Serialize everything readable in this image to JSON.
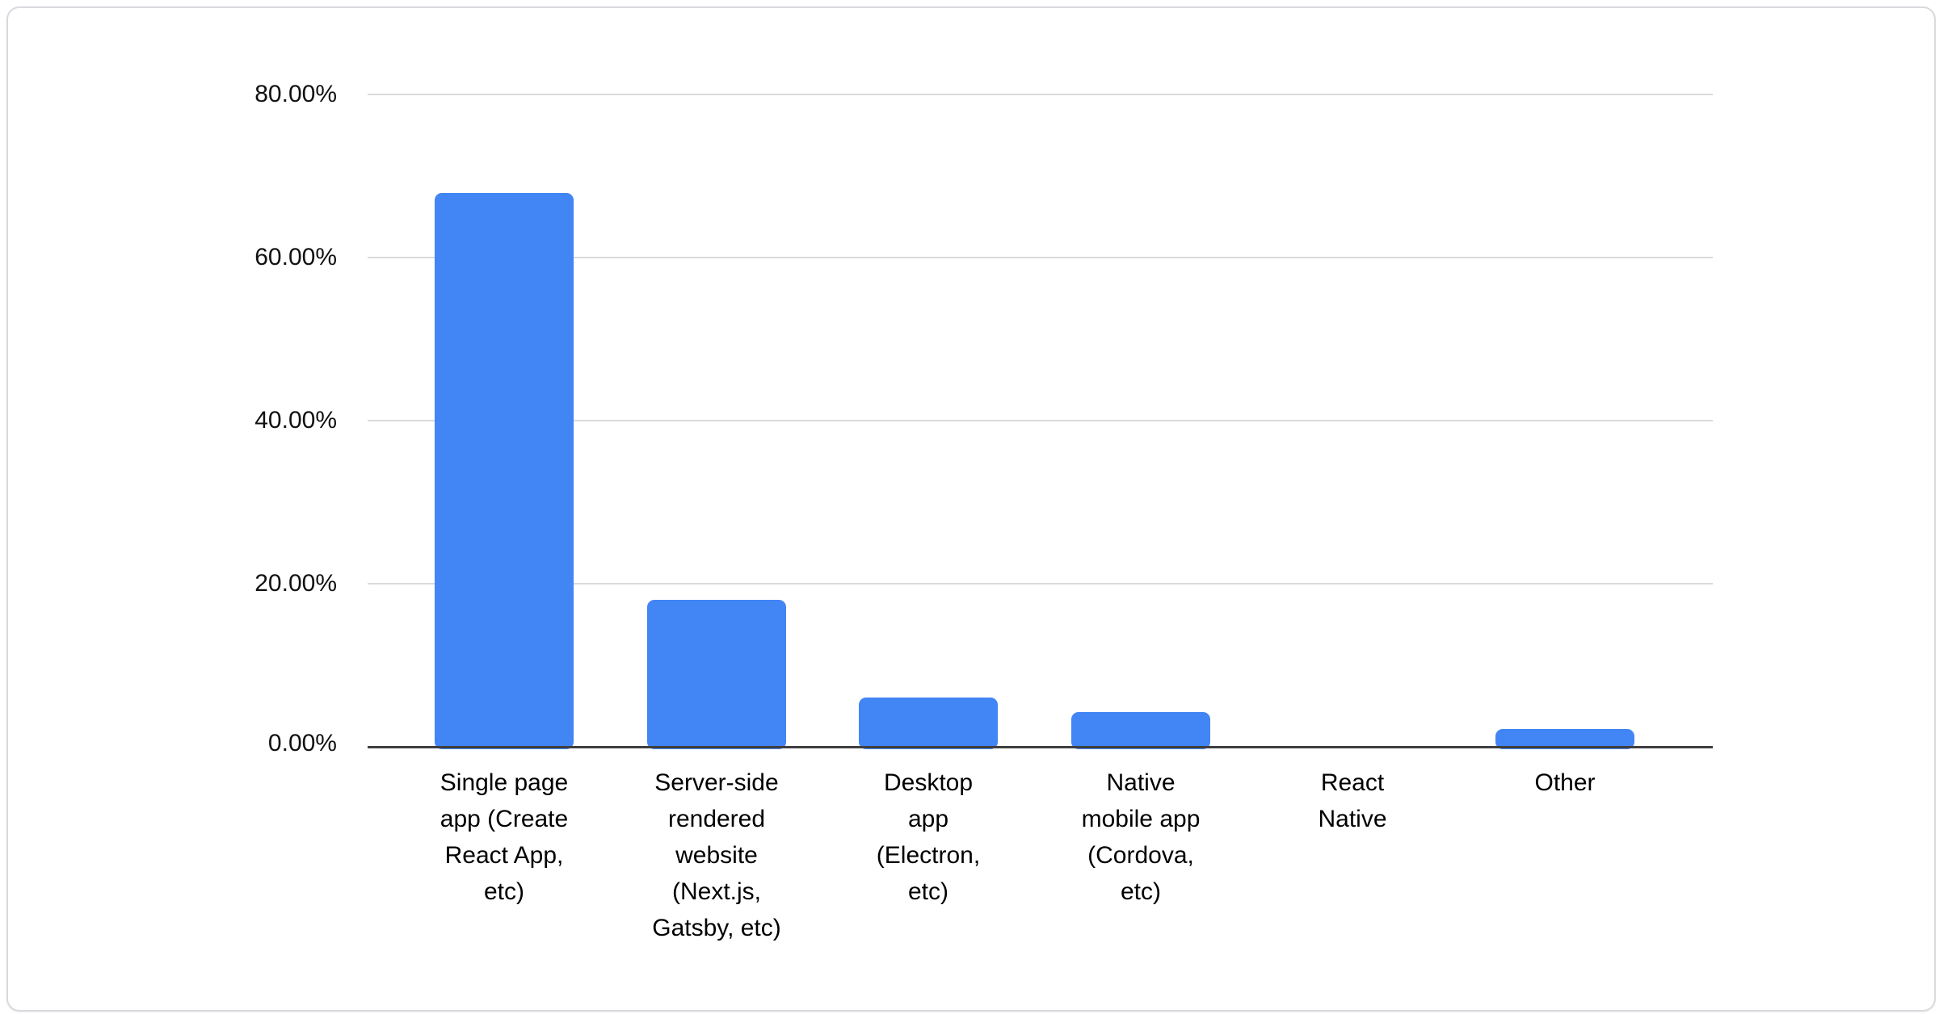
{
  "card": {
    "background": "#ffffff",
    "border_color": "#d8dadf"
  },
  "chart_data": {
    "type": "bar",
    "title": "",
    "xlabel": "",
    "ylabel": "",
    "legend": "none",
    "grid": true,
    "categories": [
      "Single page app (Create React App, etc)",
      "Server-side rendered website (Next.js, Gatsby, etc)",
      "Desktop app (Electron, etc)",
      "Native mobile app (Cordova, etc)",
      "React Native",
      "Other"
    ],
    "category_labels_wrapped": [
      "Single page\napp (Create\nReact App,\netc)",
      "Server-side\nrendered\nwebsite\n(Next.js,\nGatsby, etc)",
      "Desktop\napp\n(Electron,\netc)",
      "Native\nmobile app\n(Cordova,\netc)",
      "React\nNative",
      "Other"
    ],
    "values": [
      68.2,
      18.3,
      6.3,
      4.6,
      0,
      2.5
    ],
    "unit": "%",
    "ylim": [
      0,
      80
    ],
    "y_tick_values": [
      80,
      60,
      40,
      20,
      0
    ],
    "y_ticks": [
      "80.00%",
      "60.00%",
      "40.00%",
      "20.00%",
      "0.00%"
    ],
    "bar_color": "#4285f4",
    "gridline_color": "#dadada",
    "axis_line_color": "#3f3f3f",
    "tick_label_color": "#111111",
    "category_label_color": "#000000"
  }
}
